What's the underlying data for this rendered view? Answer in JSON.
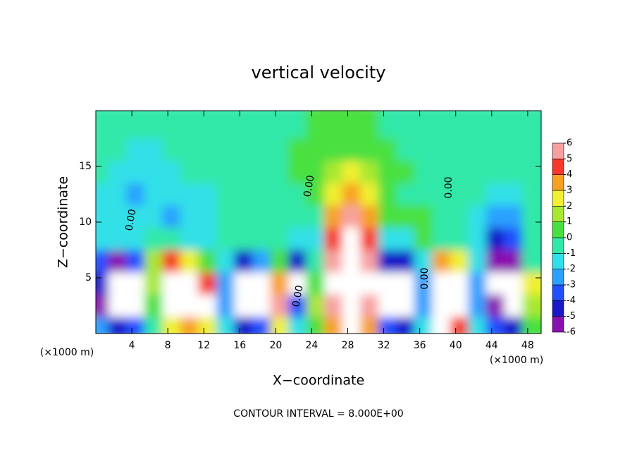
{
  "chart_data": {
    "type": "heatmap",
    "title": "vertical velocity",
    "xlabel": "X−coordinate",
    "ylabel": "Z−coordinate",
    "x_unit": "(×1000 m)",
    "footnote": "CONTOUR INTERVAL = 8.000E+00",
    "contour_label": "0.00",
    "x": [
      1,
      3,
      5,
      7,
      9,
      11,
      13,
      15,
      17,
      19,
      21,
      23,
      25,
      27,
      29,
      31,
      33,
      35,
      37,
      39,
      41,
      43,
      45,
      47,
      49
    ],
    "y": [
      1,
      3,
      5,
      7,
      9,
      11,
      13,
      15,
      17,
      19
    ],
    "z": [
      [
        -2,
        -4,
        -3,
        0,
        3,
        4,
        3,
        -1,
        -4,
        -3,
        3,
        -1,
        1,
        4,
        9,
        4,
        -3,
        -4,
        -1,
        7,
        5,
        -1,
        -3,
        -4,
        1
      ],
      [
        -5,
        -9,
        -8,
        1,
        7,
        9,
        8,
        -2,
        -9,
        -7,
        6,
        -3,
        2,
        6,
        10,
        6,
        -8,
        -9,
        -2,
        10,
        9,
        -2,
        -6,
        -7,
        2
      ],
      [
        -4,
        -9,
        -8,
        2,
        9,
        8,
        5,
        -2,
        -8,
        -7,
        4,
        -7,
        1,
        7,
        12,
        7,
        -8,
        -9,
        -2,
        9,
        8,
        -2,
        -8,
        -9,
        3
      ],
      [
        -3,
        -5,
        -3,
        2,
        5,
        3,
        1,
        -1,
        -4,
        -2,
        1,
        -4,
        0,
        6,
        10,
        6,
        -4,
        -4,
        -1,
        4,
        3,
        -1,
        -6,
        -5,
        0
      ],
      [
        -1,
        -1,
        -1,
        0,
        0,
        -1,
        -1,
        0,
        0,
        0,
        0,
        -1,
        -1,
        5,
        9,
        5,
        -1,
        -1,
        1,
        0,
        0,
        -1,
        -4,
        -3,
        0
      ],
      [
        -1,
        -1,
        -1,
        -1,
        -2,
        -1,
        -1,
        0,
        0,
        0,
        0,
        0,
        0,
        4,
        6,
        4,
        1,
        1,
        1,
        0,
        0,
        -1,
        -2,
        -2,
        0
      ],
      [
        -1,
        -1,
        -2,
        -1,
        -1,
        -1,
        -1,
        0,
        0,
        0,
        0,
        0,
        1,
        3,
        4,
        3,
        1,
        0,
        0,
        0,
        0,
        0,
        -1,
        -1,
        0
      ],
      [
        0,
        -1,
        -1,
        -1,
        -1,
        0,
        0,
        0,
        0,
        0,
        0,
        1,
        1,
        2,
        3,
        2,
        1,
        1,
        0,
        0,
        0,
        0,
        0,
        0,
        0
      ],
      [
        0,
        0,
        -1,
        -1,
        0,
        0,
        0,
        0,
        0,
        0,
        0,
        1,
        1,
        1,
        1,
        1,
        1,
        0,
        0,
        0,
        0,
        0,
        0,
        0,
        0
      ],
      [
        0,
        0,
        0,
        0,
        0,
        0,
        0,
        0,
        0,
        0,
        0,
        0,
        1,
        1,
        1,
        1,
        0,
        0,
        0,
        0,
        0,
        0,
        0,
        0,
        0
      ]
    ],
    "xlim": [
      0,
      49.5
    ],
    "ylim": [
      0,
      20
    ],
    "xticks": [
      4,
      8,
      12,
      16,
      20,
      24,
      28,
      32,
      36,
      40,
      44,
      48
    ],
    "yticks": [
      5,
      10,
      15
    ],
    "cticks": [
      -6,
      -5,
      -4,
      -3,
      -2,
      -1,
      0,
      1,
      2,
      3,
      4,
      5,
      6
    ],
    "colors": [
      "#8a10b0",
      "#1818c8",
      "#2050ff",
      "#2aa0ff",
      "#30e0e8",
      "#30e8a8",
      "#48e040",
      "#a8e830",
      "#f0f030",
      "#f8a020",
      "#f83828",
      "#f8a0a0"
    ],
    "out_of_range_color": "#ffffff"
  }
}
